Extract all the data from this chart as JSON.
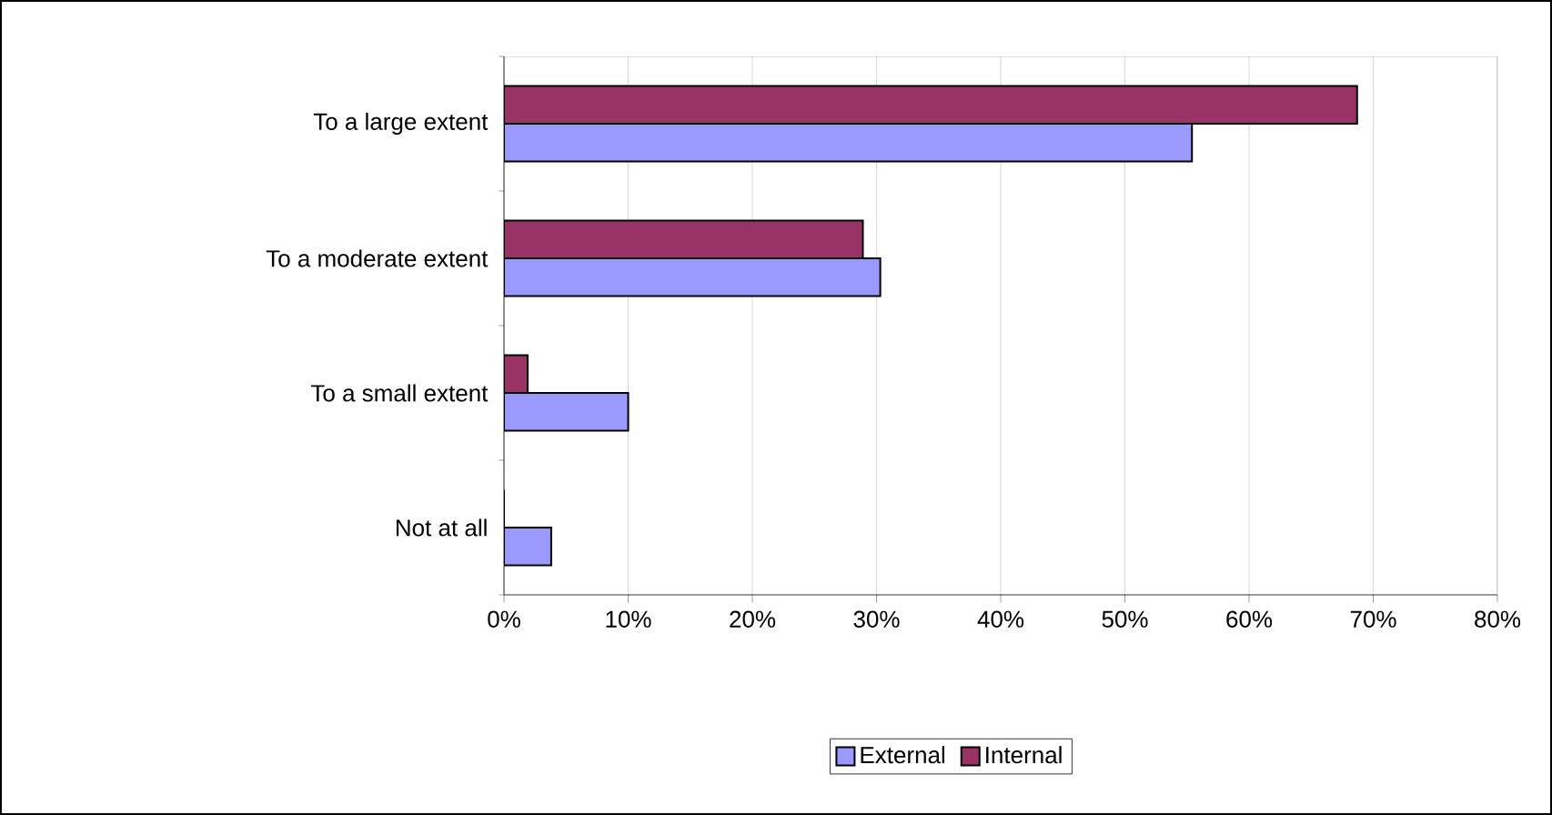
{
  "chart_data": {
    "type": "bar",
    "orientation": "horizontal",
    "categories": [
      "To a large extent",
      "To a moderate extent",
      "To a small extent",
      "Not at all"
    ],
    "series": [
      {
        "name": "External",
        "color": "#9999ff",
        "values": [
          55.4,
          30.3,
          10.0,
          3.8
        ]
      },
      {
        "name": "Internal",
        "color": "#993366",
        "values": [
          68.7,
          28.9,
          1.9,
          0
        ]
      }
    ],
    "xlim": [
      0,
      80
    ],
    "xticks": [
      {
        "value": 0,
        "label": "0%"
      },
      {
        "value": 10,
        "label": "10%"
      },
      {
        "value": 20,
        "label": "20%"
      },
      {
        "value": 30,
        "label": "30%"
      },
      {
        "value": 40,
        "label": "40%"
      },
      {
        "value": 50,
        "label": "50%"
      },
      {
        "value": 60,
        "label": "60%"
      },
      {
        "value": 70,
        "label": "70%"
      },
      {
        "value": 80,
        "label": "80%"
      }
    ],
    "grid": "x",
    "legend": "bottom"
  }
}
